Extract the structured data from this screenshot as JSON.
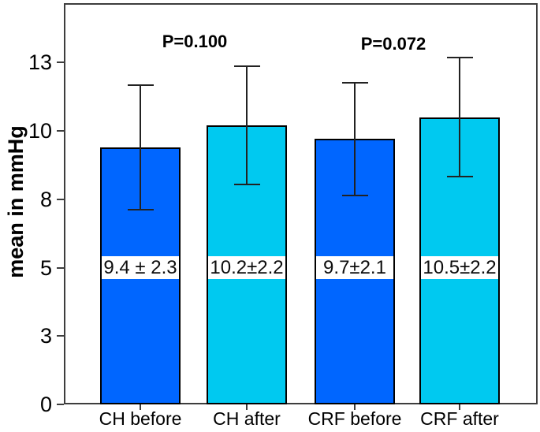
{
  "chart_data": {
    "type": "bar",
    "title": "",
    "ylabel": "mean in mmHg",
    "xlabel": "",
    "categories": [
      "CH before",
      "CH after",
      "CRF before",
      "CRF after"
    ],
    "series": [
      {
        "name": "mean in mmHg",
        "values": [
          9.4,
          10.2,
          9.7,
          10.5
        ],
        "errors": [
          2.3,
          2.2,
          2.1,
          2.2
        ]
      }
    ],
    "bar_value_labels": [
      "9.4 ± 2.3",
      "10.2±2.2",
      "9.7±2.1",
      "10.5±2.2"
    ],
    "bar_colors": [
      "#0066FF",
      "#00C9F0",
      "#0066FF",
      "#00C9F0"
    ],
    "bar_border_color": "#000000",
    "error_bar_color": "#222222",
    "y_axis": {
      "range": [
        0,
        14.67
      ],
      "ticks": [
        {
          "value": 0,
          "label": "0"
        },
        {
          "value": 2.5,
          "label": "3"
        },
        {
          "value": 5,
          "label": "5"
        },
        {
          "value": 7.5,
          "label": "8"
        },
        {
          "value": 10,
          "label": "10"
        },
        {
          "value": 12.5,
          "label": "13"
        }
      ]
    },
    "annotations": [
      {
        "text": "P=0.100",
        "between": [
          "CH before",
          "CH after"
        ]
      },
      {
        "text": "P=0.072",
        "between": [
          "CRF before",
          "CRF after"
        ]
      }
    ],
    "legend": false,
    "grid": false
  }
}
